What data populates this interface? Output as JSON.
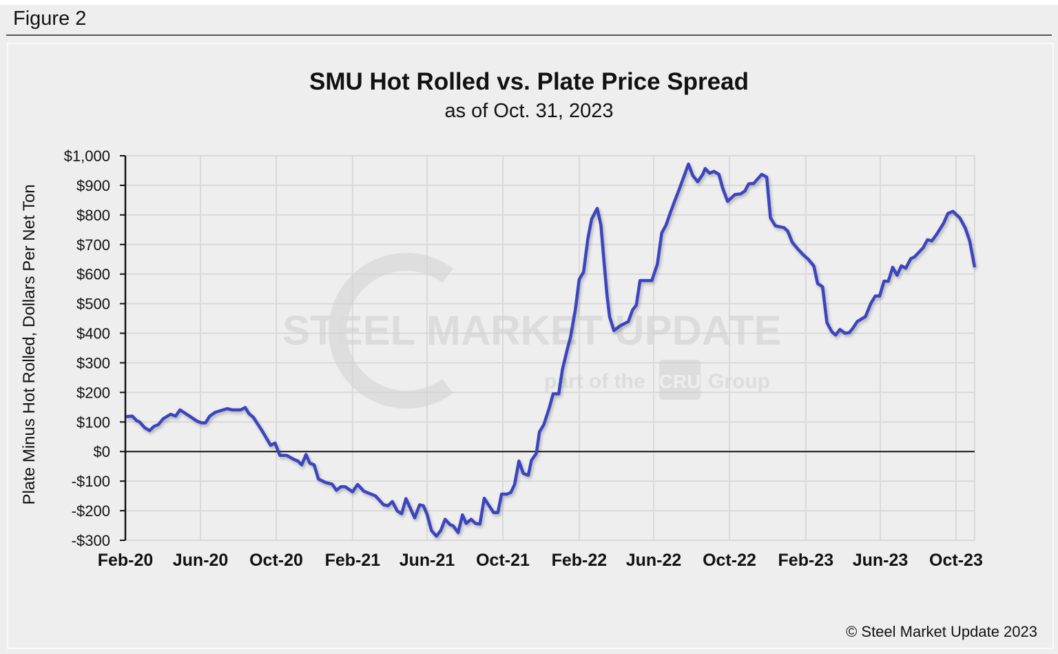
{
  "figure_label": "Figure 2",
  "copyright": "© Steel Market Update 2023",
  "watermark": {
    "brand": "STEEL MARKET UPDATE",
    "sub": "part of the",
    "group_logo": "CRU",
    "group": "Group"
  },
  "colors": {
    "line": "#3a45c0",
    "background": "#eeeeee",
    "grid": "#d9d9d9"
  },
  "chart_data": {
    "type": "line",
    "title": "SMU Hot Rolled vs. Plate Price Spread",
    "subtitle": "as of Oct. 31, 2023",
    "xlabel": "",
    "ylabel": "Plate Minus Hot Rolled, Dollars Per Net Ton",
    "xlim": [
      "2020-02-01",
      "2023-10-31"
    ],
    "ylim": [
      -300,
      1000
    ],
    "y_ticks": [
      1000,
      900,
      800,
      700,
      600,
      500,
      400,
      300,
      200,
      100,
      0,
      -100,
      -200,
      -300
    ],
    "y_tick_labels": [
      "$1,000",
      "$900",
      "$800",
      "$700",
      "$600",
      "$500",
      "$400",
      "$300",
      "$200",
      "$100",
      "$0",
      "-$100",
      "-$200",
      "-$300"
    ],
    "x_ticks": [
      "2020-02-01",
      "2020-06-01",
      "2020-10-01",
      "2021-02-01",
      "2021-06-01",
      "2021-10-01",
      "2022-02-01",
      "2022-06-01",
      "2022-10-01",
      "2023-02-01",
      "2023-06-01",
      "2023-10-01"
    ],
    "x_tick_labels": [
      "Feb-20",
      "Jun-20",
      "Oct-20",
      "Feb-21",
      "Jun-21",
      "Oct-21",
      "Feb-22",
      "Jun-22",
      "Oct-22",
      "Feb-23",
      "Jun-23",
      "Oct-23"
    ],
    "grid": true,
    "zero_line": true,
    "x": [
      "2020-02-02",
      "2020-02-12",
      "2020-02-19",
      "2020-02-24",
      "2020-03-03",
      "2020-03-11",
      "2020-03-18",
      "2020-03-25",
      "2020-04-02",
      "2020-04-14",
      "2020-04-22",
      "2020-04-29",
      "2020-05-12",
      "2020-05-27",
      "2020-06-03",
      "2020-06-09",
      "2020-06-16",
      "2020-06-25",
      "2020-07-14",
      "2020-07-22",
      "2020-08-05",
      "2020-08-12",
      "2020-08-18",
      "2020-08-25",
      "2020-09-08",
      "2020-09-22",
      "2020-09-29",
      "2020-10-07",
      "2020-10-18",
      "2020-10-29",
      "2020-11-05",
      "2020-11-11",
      "2020-11-18",
      "2020-11-24",
      "2020-12-01",
      "2020-12-08",
      "2020-12-20",
      "2020-12-30",
      "2021-01-06",
      "2021-01-13",
      "2021-01-20",
      "2021-02-01",
      "2021-02-09",
      "2021-02-19",
      "2021-03-10",
      "2021-03-23",
      "2021-03-30",
      "2021-04-06",
      "2021-04-14",
      "2021-04-21",
      "2021-04-28",
      "2021-05-12",
      "2021-05-20",
      "2021-05-26",
      "2021-06-01",
      "2021-06-08",
      "2021-06-16",
      "2021-06-23",
      "2021-06-30",
      "2021-07-08",
      "2021-07-13",
      "2021-07-21",
      "2021-07-28",
      "2021-08-03",
      "2021-08-11",
      "2021-08-18",
      "2021-08-25",
      "2021-09-01",
      "2021-09-11",
      "2021-09-16",
      "2021-09-23",
      "2021-09-29",
      "2021-10-08",
      "2021-10-14",
      "2021-10-20",
      "2021-10-27",
      "2021-11-03",
      "2021-11-11",
      "2021-11-16",
      "2021-11-24",
      "2021-11-29",
      "2021-12-06",
      "2021-12-15",
      "2021-12-21",
      "2021-12-30",
      "2022-01-05",
      "2022-01-13",
      "2022-01-18",
      "2022-01-26",
      "2022-02-01",
      "2022-02-08",
      "2022-02-15",
      "2022-02-21",
      "2022-03-02",
      "2022-03-08",
      "2022-03-13",
      "2022-03-18",
      "2022-03-22",
      "2022-03-29",
      "2022-04-08",
      "2022-04-21",
      "2022-04-28",
      "2022-05-04",
      "2022-05-10",
      "2022-05-29",
      "2022-06-07",
      "2022-06-14",
      "2022-06-21",
      "2022-06-28",
      "2022-07-05",
      "2022-07-13",
      "2022-07-27",
      "2022-08-03",
      "2022-08-11",
      "2022-08-19",
      "2022-08-23",
      "2022-08-30",
      "2022-09-06",
      "2022-09-14",
      "2022-09-20",
      "2022-09-28",
      "2022-10-10",
      "2022-10-19",
      "2022-10-26",
      "2022-11-01",
      "2022-11-09",
      "2022-11-22",
      "2022-11-30",
      "2022-12-06",
      "2022-12-14",
      "2022-12-28",
      "2023-01-03",
      "2023-01-10",
      "2023-01-19",
      "2023-01-28",
      "2023-02-05",
      "2023-02-14",
      "2023-02-20",
      "2023-02-28",
      "2023-03-07",
      "2023-03-15",
      "2023-03-21",
      "2023-03-28",
      "2023-04-05",
      "2023-04-12",
      "2023-04-18",
      "2023-04-25",
      "2023-05-08",
      "2023-05-17",
      "2023-05-24",
      "2023-05-31",
      "2023-06-07",
      "2023-06-14",
      "2023-06-21",
      "2023-06-28",
      "2023-07-05",
      "2023-07-12",
      "2023-07-20",
      "2023-07-26",
      "2023-08-09",
      "2023-08-16",
      "2023-08-23",
      "2023-08-31",
      "2023-09-11",
      "2023-09-18",
      "2023-09-26",
      "2023-10-07",
      "2023-10-16",
      "2023-10-23",
      "2023-10-31"
    ],
    "values": [
      118,
      120,
      105,
      100,
      81,
      71,
      85,
      91,
      111,
      126,
      120,
      141,
      123,
      102,
      97,
      97,
      120,
      133,
      145,
      141,
      141,
      149,
      128,
      116,
      71,
      21,
      29,
      -13,
      -13,
      -26,
      -32,
      -45,
      -10,
      -39,
      -45,
      -93,
      -105,
      -110,
      -131,
      -119,
      -119,
      -136,
      -111,
      -134,
      -150,
      -180,
      -183,
      -169,
      -201,
      -210,
      -159,
      -224,
      -180,
      -183,
      -212,
      -267,
      -286,
      -267,
      -229,
      -247,
      -251,
      -274,
      -214,
      -243,
      -229,
      -243,
      -245,
      -158,
      -190,
      -206,
      -206,
      -144,
      -144,
      -138,
      -111,
      -32,
      -74,
      -80,
      -30,
      -6,
      67,
      91,
      149,
      195,
      195,
      277,
      347,
      386,
      483,
      582,
      607,
      720,
      786,
      822,
      766,
      642,
      526,
      456,
      409,
      425,
      439,
      479,
      495,
      578,
      578,
      634,
      739,
      766,
      809,
      848,
      892,
      972,
      933,
      912,
      937,
      957,
      941,
      947,
      937,
      891,
      846,
      869,
      871,
      881,
      905,
      906,
      937,
      928,
      790,
      763,
      757,
      745,
      708,
      685,
      665,
      650,
      627,
      568,
      557,
      436,
      405,
      394,
      413,
      400,
      402,
      417,
      440,
      456,
      502,
      526,
      526,
      576,
      576,
      623,
      596,
      628,
      620,
      652,
      658,
      689,
      716,
      712,
      735,
      772,
      805,
      812,
      790,
      755,
      712,
      623
    ]
  }
}
